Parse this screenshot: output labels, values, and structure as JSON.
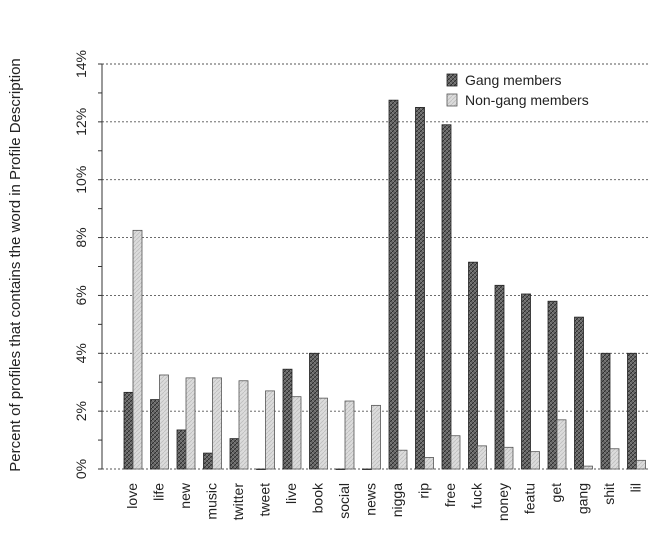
{
  "chart_data": {
    "type": "bar",
    "title": "",
    "xlabel": "",
    "ylabel": "Percent of profiles that contains the word in Profile Description",
    "ylim": [
      0,
      14
    ],
    "yticks": [
      "0%",
      "2%",
      "4%",
      "6%",
      "8%",
      "10%",
      "12%",
      "14%"
    ],
    "grid": true,
    "legend_position": "top-right",
    "categories": [
      "love",
      "life",
      "new",
      "music",
      "twitter",
      "tweet",
      "live",
      "book",
      "social",
      "news",
      "nigga",
      "rip",
      "free",
      "fuck",
      "noney",
      "featu",
      "get",
      "gang",
      "shit",
      "lil"
    ],
    "series": [
      {
        "name": "Gang members",
        "color": "#555555",
        "values": [
          2.65,
          2.4,
          1.35,
          0.55,
          1.05,
          0.0,
          3.45,
          4.0,
          0.0,
          0.0,
          12.75,
          12.5,
          11.9,
          7.15,
          6.35,
          6.05,
          5.8,
          5.25,
          4.0,
          4.0
        ]
      },
      {
        "name": "Non-gang members",
        "color": "#d6d6d6",
        "values": [
          8.25,
          3.25,
          3.15,
          3.15,
          3.05,
          2.7,
          2.5,
          2.45,
          2.35,
          2.2,
          0.65,
          0.4,
          1.15,
          0.8,
          0.75,
          0.6,
          1.7,
          0.1,
          0.7,
          0.3
        ]
      }
    ]
  }
}
